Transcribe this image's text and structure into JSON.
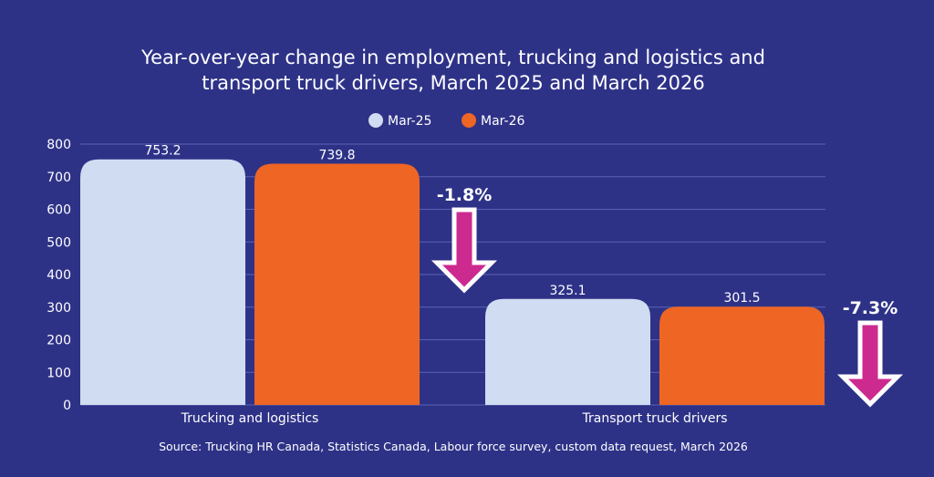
{
  "chart_data": {
    "type": "bar",
    "title": "Year-over-year change in employment, trucking and logistics and transport truck drivers, March 2025 and March 2026",
    "title_lines": [
      "Year-over-year change in employment, trucking and logistics and",
      "transport truck drivers, March 2025 and March 2026"
    ],
    "categories": [
      "Trucking and logistics",
      "Transport truck drivers"
    ],
    "series": [
      {
        "name": "Mar-25",
        "values": [
          753.2,
          325.1
        ],
        "labels": [
          "753.2",
          "325.1"
        ],
        "color": "#cfdcf1"
      },
      {
        "name": "Mar-26",
        "values": [
          739.8,
          301.5
        ],
        "labels": [
          "739.8",
          "301.5"
        ],
        "color": "#ee6524"
      }
    ],
    "changes": [
      "-1.8%",
      "-7.3%"
    ],
    "change_arrow_color": "#cc2a8f",
    "ylim": [
      0,
      800
    ],
    "yticks": [
      "0",
      "100",
      "200",
      "300",
      "400",
      "500",
      "600",
      "700",
      "800"
    ],
    "grid": true,
    "legend": "top-center",
    "source": "Source: Trucking HR Canada, Statistics Canada, Labour force survey, custom data request, March 2026",
    "background": "#2e3287"
  }
}
